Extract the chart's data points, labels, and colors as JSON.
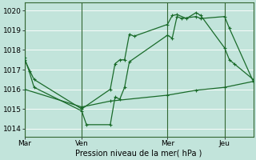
{
  "xlabel": "Pression niveau de la mer( hPa )",
  "bg_color": "#c2e4db",
  "grid_color": "#ffffff",
  "line_color": "#1a6b2a",
  "vline_color": "#336633",
  "ylim": [
    1013.6,
    1020.4
  ],
  "yticks": [
    1014,
    1015,
    1016,
    1017,
    1018,
    1019,
    1020
  ],
  "xlim": [
    0,
    144
  ],
  "day_labels": [
    "Mar",
    "Ven",
    "Mer",
    "Jeu"
  ],
  "day_positions": [
    0,
    36,
    90,
    126
  ],
  "series1": {
    "x": [
      0,
      3,
      6,
      36,
      39,
      54,
      57,
      60,
      63,
      66,
      90,
      93,
      96,
      99,
      108,
      111,
      126,
      129,
      144
    ],
    "y": [
      1017.6,
      1016.9,
      1016.1,
      1014.9,
      1014.2,
      1014.2,
      1015.6,
      1015.5,
      1016.1,
      1017.4,
      1018.75,
      1018.6,
      1019.7,
      1019.6,
      1019.7,
      1019.6,
      1019.7,
      1019.1,
      1016.4
    ]
  },
  "series2": {
    "x": [
      0,
      6,
      36,
      54,
      57,
      60,
      63,
      66,
      69,
      90,
      93,
      96,
      102,
      108,
      111,
      126,
      129,
      132,
      144
    ],
    "y": [
      1017.5,
      1016.5,
      1015.0,
      1016.0,
      1017.3,
      1017.5,
      1017.5,
      1018.8,
      1018.7,
      1019.3,
      1019.75,
      1019.8,
      1019.6,
      1019.9,
      1019.75,
      1018.1,
      1017.5,
      1017.3,
      1016.5
    ]
  },
  "series3": {
    "x": [
      0,
      36,
      54,
      90,
      108,
      126,
      144
    ],
    "y": [
      1016.0,
      1015.1,
      1015.4,
      1015.7,
      1015.95,
      1016.1,
      1016.4
    ]
  }
}
